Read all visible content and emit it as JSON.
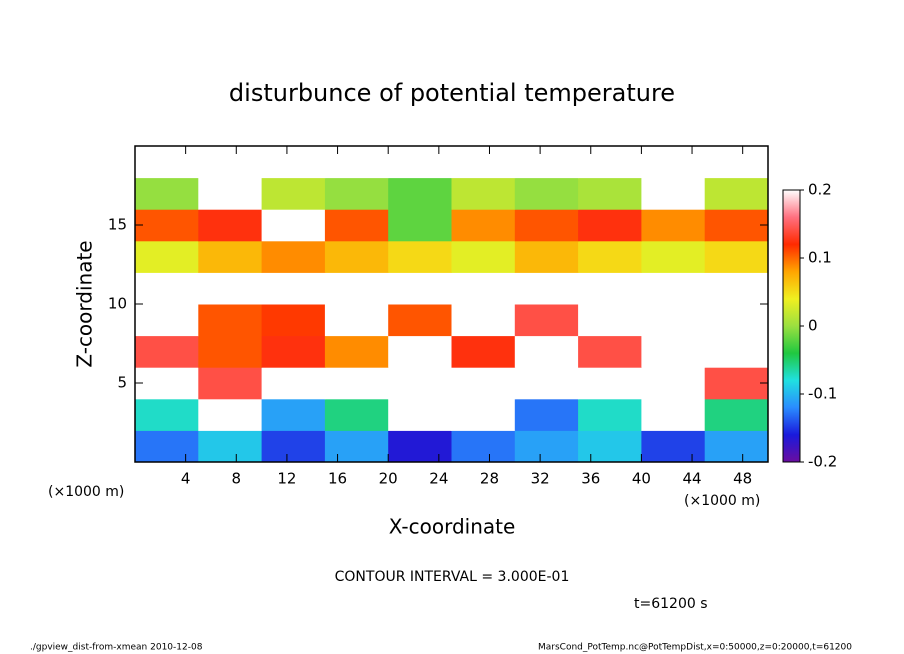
{
  "chart_data": {
    "type": "heatmap",
    "title": "disturbunce of potential temperature",
    "x_label": "X-coordinate",
    "y_label": "Z-coordinate",
    "x_unit_left": "(×1000 m)",
    "x_unit_right": "(×1000 m)",
    "contour_interval": "CONTOUR INTERVAL = 3.000E-01",
    "time_label": "t=61200 s",
    "footer_left": "./gpview_dist-from-xmean  2010-12-08",
    "footer_right": "MarsCond_PotTemp.nc@PotTempDist,x=0:50000,z=0:20000,t=61200",
    "x": [
      2.5,
      7.5,
      12.5,
      17.5,
      22.5,
      27.5,
      32.5,
      37.5,
      42.5,
      47.5
    ],
    "y": [
      1,
      3,
      5,
      7,
      9,
      11,
      13,
      15,
      17,
      19
    ],
    "values": [
      [
        -0.12,
        -0.08,
        -0.14,
        -0.1,
        -0.16,
        -0.12,
        -0.1,
        -0.08,
        -0.14,
        -0.1
      ],
      [
        -0.06,
        0.2,
        -0.1,
        -0.04,
        0.2,
        0.2,
        -0.12,
        -0.06,
        0.2,
        -0.04
      ],
      [
        0.2,
        0.18,
        0.2,
        0.2,
        0.2,
        0.22,
        0.2,
        0.2,
        0.2,
        0.18
      ],
      [
        0.18,
        0.14,
        0.16,
        0.12,
        0.2,
        0.16,
        0.2,
        0.18,
        0.2,
        0.2
      ],
      [
        0.22,
        0.14,
        0.15,
        0.2,
        0.14,
        0.2,
        0.18,
        0.2,
        0.2,
        0.22
      ],
      [
        0.2,
        0.22,
        0.2,
        0.22,
        0.2,
        0.22,
        0.22,
        0.2,
        0.2,
        0.2
      ],
      [
        0.06,
        0.1,
        0.12,
        0.1,
        0.08,
        0.06,
        0.1,
        0.08,
        0.06,
        0.08
      ],
      [
        0.14,
        0.16,
        0.2,
        0.14,
        0.0,
        0.12,
        0.14,
        0.16,
        0.12,
        0.14
      ],
      [
        0.02,
        0.2,
        0.04,
        0.02,
        0.0,
        0.04,
        0.02,
        0.03,
        0.2,
        0.04
      ],
      [
        0.2,
        0.22,
        0.2,
        0.22,
        0.2,
        0.22,
        0.2,
        0.22,
        0.2,
        0.22
      ]
    ],
    "xlim": [
      0,
      50
    ],
    "ylim": [
      0,
      20
    ],
    "xticks": [
      4,
      8,
      12,
      16,
      20,
      24,
      28,
      32,
      36,
      40,
      44,
      48
    ],
    "yticks": [
      5,
      10,
      15
    ],
    "clim": [
      -0.2,
      0.2
    ],
    "cticks": [
      -0.2,
      -0.1,
      0,
      0.1,
      0.2
    ],
    "colorscale": [
      "#6a0da0",
      "#1a1adc",
      "#2a8cff",
      "#20e0e0",
      "#20c840",
      "#9be040",
      "#f0f020",
      "#ffa500",
      "#ff2a00",
      "#ff7080",
      "#ffffff"
    ]
  }
}
